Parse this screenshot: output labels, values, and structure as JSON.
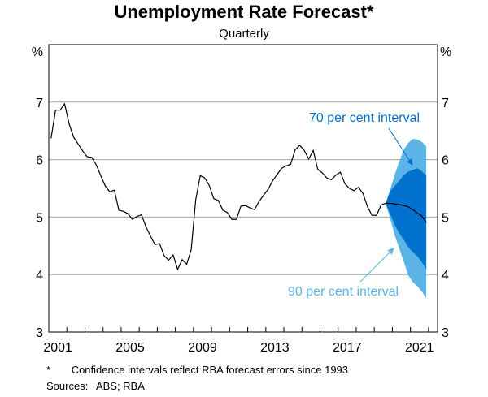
{
  "chart_data": {
    "type": "line",
    "title": "Unemployment Rate Forecast*",
    "subtitle": "Quarterly",
    "ylabel_left": "%",
    "ylabel_right": "%",
    "xlim": [
      2001,
      2022.5
    ],
    "ylim": [
      3,
      8
    ],
    "yticks": [
      3,
      4,
      5,
      6,
      7
    ],
    "xtick_labels": [
      "2001",
      "2005",
      "2009",
      "2013",
      "2017",
      "2021"
    ],
    "grid": true,
    "actual": {
      "start": "2001 Q1",
      "frequency": "quarterly",
      "values": [
        6.37,
        6.86,
        6.86,
        6.97,
        6.62,
        6.39,
        6.27,
        6.15,
        6.05,
        6.04,
        5.91,
        5.72,
        5.54,
        5.44,
        5.47,
        5.12,
        5.1,
        5.06,
        4.96,
        5.01,
        5.04,
        4.83,
        4.67,
        4.52,
        4.54,
        4.33,
        4.25,
        4.34,
        4.09,
        4.26,
        4.18,
        4.43,
        5.3,
        5.72,
        5.68,
        5.55,
        5.32,
        5.29,
        5.12,
        5.08,
        4.96,
        4.96,
        5.19,
        5.2,
        5.16,
        5.13,
        5.27,
        5.38,
        5.48,
        5.63,
        5.74,
        5.85,
        5.89,
        5.92,
        6.17,
        6.25,
        6.16,
        6.01,
        6.16,
        5.83,
        5.77,
        5.68,
        5.65,
        5.73,
        5.78,
        5.58,
        5.5,
        5.46,
        5.52,
        5.41,
        5.18,
        5.03,
        5.03,
        5.21,
        5.24
      ],
      "color": "#000000"
    },
    "forecast": {
      "start": "2019 Q3",
      "central": [
        5.24,
        5.24,
        5.23,
        5.22,
        5.2,
        5.18,
        5.13,
        5.07,
        5.02,
        4.9
      ],
      "interval_90_upper": [
        5.24,
        5.47,
        5.73,
        5.96,
        6.17,
        6.29,
        6.36,
        6.35,
        6.31,
        6.23
      ],
      "interval_90_lower": [
        5.24,
        4.98,
        4.69,
        4.46,
        4.23,
        3.99,
        3.87,
        3.8,
        3.71,
        3.59
      ],
      "interval_70_upper": [
        5.24,
        5.45,
        5.54,
        5.63,
        5.73,
        5.79,
        5.82,
        5.85,
        5.8,
        5.72
      ],
      "interval_70_lower": [
        5.24,
        5.05,
        4.87,
        4.72,
        4.61,
        4.48,
        4.39,
        4.32,
        4.22,
        4.09
      ],
      "color_70": "#0072CE",
      "color_90": "#5BB4E5"
    },
    "annotations": {
      "label_70": "70 per cent interval",
      "label_90": "90 per cent interval"
    }
  },
  "footnote": {
    "marker": "*",
    "text": "Confidence intervals reflect RBA forecast errors since 1993"
  },
  "sources": {
    "label": "Sources:",
    "text": "ABS; RBA"
  }
}
